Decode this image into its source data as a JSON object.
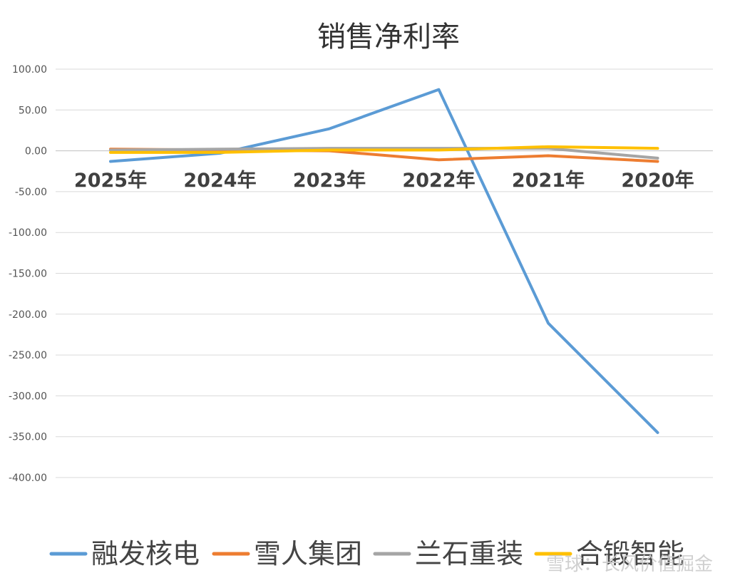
{
  "chart_data": {
    "type": "line",
    "title": "销售净利率",
    "categories": [
      "2025年",
      "2024年",
      "2023年",
      "2022年",
      "2021年",
      "2020年"
    ],
    "ylim": [
      -400,
      100
    ],
    "yticks": [
      "100.00",
      "50.00",
      "0.00",
      "-50.00",
      "-100.00",
      "-150.00",
      "-200.00",
      "-250.00",
      "-300.00",
      "-350.00",
      "-400.00"
    ],
    "grid": true,
    "legend": "bottom",
    "series": [
      {
        "name": "融发核电",
        "color": "#5b9bd5",
        "values": [
          -13,
          -3,
          27,
          75,
          -211,
          -345
        ]
      },
      {
        "name": "雪人集团",
        "color": "#ed7d31",
        "values": [
          2,
          1,
          0,
          -11,
          -6,
          -13
        ]
      },
      {
        "name": "兰石重装",
        "color": "#a5a5a5",
        "values": [
          1,
          2,
          3,
          3,
          3,
          -9
        ]
      },
      {
        "name": "合锻智能",
        "color": "#ffc000",
        "values": [
          -2,
          -2,
          1,
          1,
          5,
          3
        ]
      }
    ]
  },
  "watermark": "雪球：长风价值掘金"
}
